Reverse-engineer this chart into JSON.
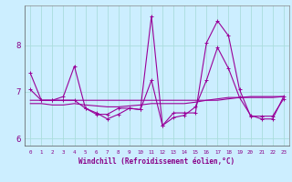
{
  "xlabel": "Windchill (Refroidissement éolien,°C)",
  "background_color": "#cceeff",
  "grid_color": "#aadddd",
  "line_color": "#990099",
  "x": [
    0,
    1,
    2,
    3,
    4,
    5,
    6,
    7,
    8,
    9,
    10,
    11,
    12,
    13,
    14,
    15,
    16,
    17,
    18,
    19,
    20,
    21,
    22,
    23
  ],
  "y_main": [
    7.4,
    6.82,
    6.82,
    6.9,
    7.55,
    6.65,
    6.52,
    6.52,
    6.65,
    6.65,
    6.62,
    8.62,
    6.28,
    6.55,
    6.55,
    6.55,
    8.05,
    8.52,
    8.2,
    7.05,
    6.48,
    6.48,
    6.48,
    6.85
  ],
  "y_curve2": [
    7.05,
    6.82,
    6.82,
    6.82,
    6.82,
    6.65,
    6.55,
    6.42,
    6.52,
    6.65,
    6.62,
    7.25,
    6.28,
    6.45,
    6.5,
    6.68,
    7.25,
    7.95,
    7.5,
    6.88,
    6.5,
    6.42,
    6.42,
    6.9
  ],
  "y_trend_flat": [
    6.82,
    6.82,
    6.82,
    6.82,
    6.82,
    6.82,
    6.82,
    6.82,
    6.82,
    6.82,
    6.82,
    6.82,
    6.82,
    6.82,
    6.82,
    6.82,
    6.82,
    6.82,
    6.85,
    6.88,
    6.9,
    6.9,
    6.9,
    6.9
  ],
  "y_trend_slight": [
    6.75,
    6.75,
    6.72,
    6.72,
    6.75,
    6.72,
    6.7,
    6.68,
    6.68,
    6.7,
    6.72,
    6.75,
    6.75,
    6.75,
    6.75,
    6.78,
    6.82,
    6.85,
    6.88,
    6.88,
    6.88,
    6.88,
    6.88,
    6.9
  ],
  "ylim": [
    5.85,
    8.85
  ],
  "xlim": [
    -0.5,
    23.5
  ],
  "yticks": [
    6,
    7,
    8
  ],
  "font_color": "#880088"
}
